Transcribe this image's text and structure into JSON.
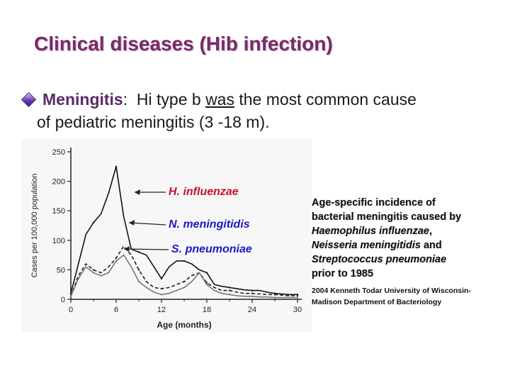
{
  "slide": {
    "title": "Clinical diseases (Hib infection)",
    "bullet": {
      "icon": "diamond-bullet-icon",
      "term": "Meningitis",
      "colon": ":",
      "text_pre": "Hi type b",
      "text_underlined": "was",
      "text_post": "the most common cause",
      "text_line2": "of pediatric meningitis (3 -18 m)."
    }
  },
  "caption": {
    "line1": "Age-specific incidence of",
    "line2": "bacterial meningitis caused by",
    "species1": "Haemophilus influenzae",
    "species1_suffix": ",",
    "species2": "Neisseria meningitidis",
    "and_word": "and",
    "species3": "Streptococcus pneumoniae",
    "line_end": "prior to 1985",
    "credit_line1": "2004 Kenneth Todar University of Wisconsin-",
    "credit_line2": "Madison Department of Bacteriology"
  },
  "chart_data": {
    "type": "line",
    "xlabel": "Age (months)",
    "ylabel": "Cases per 100,000 population",
    "xlim": [
      0,
      30
    ],
    "ylim": [
      0,
      250
    ],
    "x_ticks": [
      "0",
      "6",
      "12",
      "18",
      "24",
      "30"
    ],
    "y_ticks": [
      "0",
      "50",
      "100",
      "150",
      "200",
      "250"
    ],
    "x_values": [
      0,
      1,
      2,
      3,
      4,
      5,
      6,
      7,
      8,
      9,
      10,
      11,
      12,
      13,
      14,
      15,
      16,
      17,
      18,
      19,
      20,
      21,
      22,
      23,
      24,
      25,
      26,
      27,
      28,
      29,
      30
    ],
    "series": [
      {
        "name": "H. influenzae",
        "color": "#111111",
        "dash": "solid",
        "values": [
          10,
          60,
          110,
          130,
          145,
          180,
          225,
          140,
          85,
          80,
          75,
          55,
          35,
          55,
          65,
          65,
          60,
          50,
          45,
          25,
          22,
          20,
          18,
          16,
          15,
          15,
          12,
          10,
          9,
          8,
          8
        ]
      },
      {
        "name": "N. meningitidis",
        "color": "#222222",
        "dash": "dashed",
        "values": [
          5,
          40,
          60,
          50,
          45,
          55,
          70,
          90,
          75,
          50,
          30,
          20,
          18,
          20,
          25,
          30,
          40,
          45,
          28,
          20,
          15,
          15,
          12,
          10,
          10,
          9,
          8,
          8,
          7,
          6,
          6
        ]
      },
      {
        "name": "S. pneumoniae",
        "color": "#777777",
        "dash": "solid",
        "values": [
          5,
          35,
          55,
          45,
          40,
          45,
          65,
          75,
          55,
          30,
          20,
          12,
          8,
          10,
          15,
          20,
          30,
          45,
          25,
          15,
          10,
          8,
          6,
          5,
          5,
          4,
          4,
          3,
          3,
          3,
          3
        ]
      }
    ],
    "annotations": [
      {
        "text": "H. influenzae",
        "color": "#c8102e"
      },
      {
        "text": "N. meningitidis",
        "color": "#1a1ac8"
      },
      {
        "text": "S. pneumoniae",
        "color": "#1a1ac8"
      }
    ]
  }
}
